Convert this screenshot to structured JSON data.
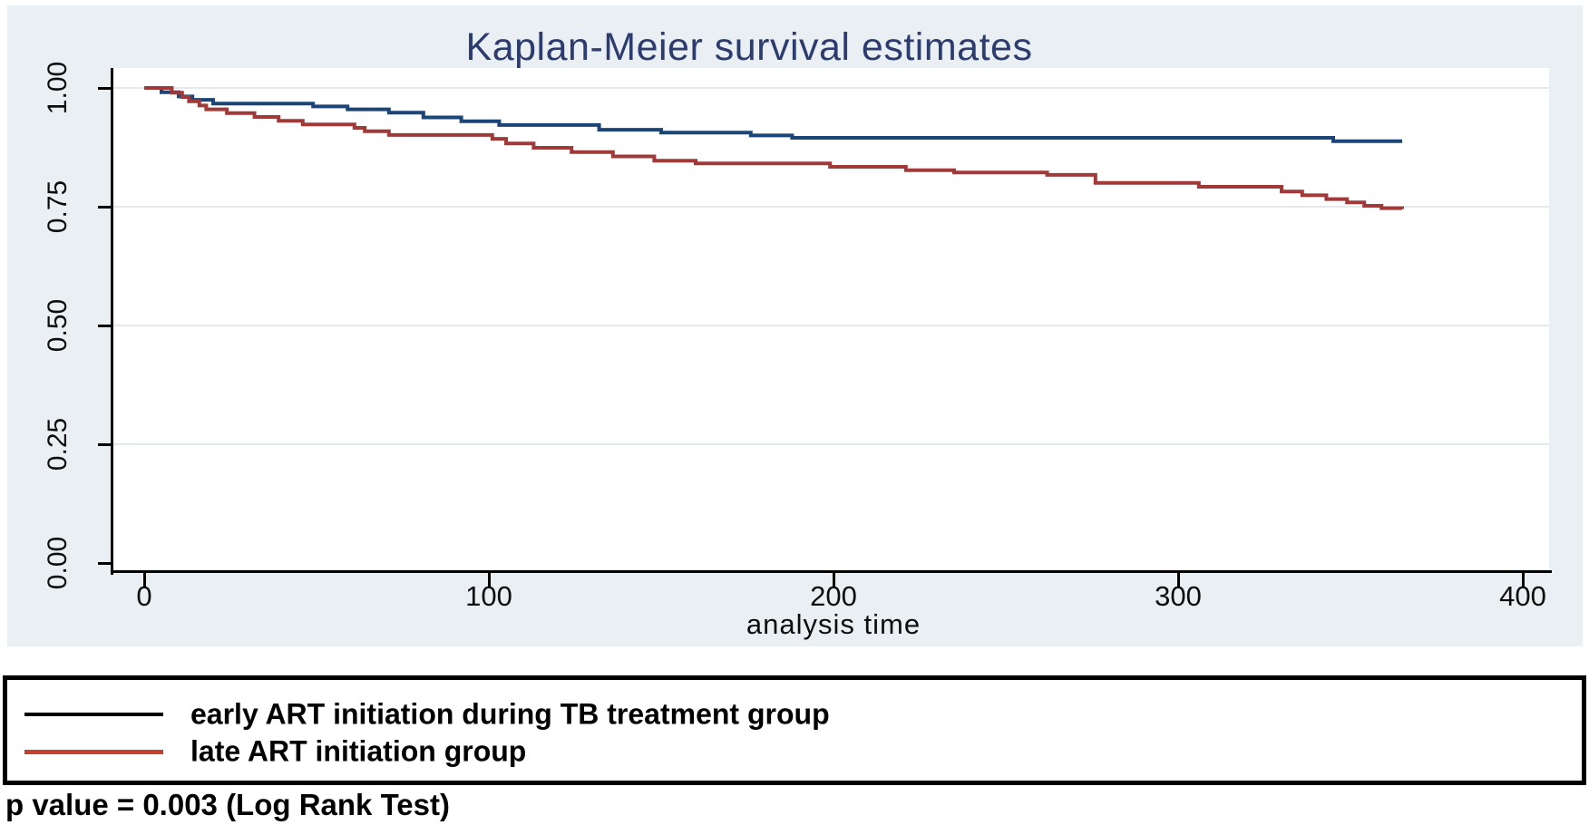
{
  "title": "Kaplan-Meier survival estimates",
  "chart_data": {
    "type": "line",
    "subtype": "kaplan-meier-survival-step",
    "title": "Kaplan-Meier survival estimates",
    "xlabel": "analysis time",
    "ylabel": "",
    "xlim": [
      0,
      400
    ],
    "ylim": [
      0.0,
      1.0
    ],
    "grid": "horizontal-faint",
    "legend_position": "bottom-framed-box",
    "x_ticks": [
      {
        "label": "0",
        "value": 0
      },
      {
        "label": "100",
        "value": 100
      },
      {
        "label": "200",
        "value": 200
      },
      {
        "label": "300",
        "value": 300
      },
      {
        "label": "400",
        "value": 400
      }
    ],
    "y_ticks": [
      {
        "label": "1.00",
        "value": 1.0
      },
      {
        "label": "0.75",
        "value": 0.75
      },
      {
        "label": "0.50",
        "value": 0.5
      },
      {
        "label": "0.25",
        "value": 0.25
      },
      {
        "label": "0.00",
        "value": 0.0
      }
    ],
    "series": [
      {
        "name": "early ART initiation during TB treatment group",
        "color": "#1c4577",
        "legend_swatch_color": "#000000",
        "end_time": 365,
        "steps": [
          [
            0,
            1.0
          ],
          [
            5,
            0.991
          ],
          [
            10,
            0.982
          ],
          [
            14,
            0.975
          ],
          [
            20,
            0.967
          ],
          [
            49,
            0.961
          ],
          [
            59,
            0.955
          ],
          [
            71,
            0.948
          ],
          [
            81,
            0.938
          ],
          [
            92,
            0.93
          ],
          [
            103,
            0.922
          ],
          [
            132,
            0.912
          ],
          [
            150,
            0.906
          ],
          [
            176,
            0.9
          ],
          [
            188,
            0.895
          ],
          [
            345,
            0.888
          ],
          [
            365,
            0.888
          ]
        ]
      },
      {
        "name": "late ART initiation group",
        "color": "#a03a38",
        "legend_swatch_color": "#c4402f",
        "end_time": 365,
        "steps": [
          [
            0,
            1.0
          ],
          [
            8,
            0.99
          ],
          [
            11,
            0.981
          ],
          [
            13,
            0.972
          ],
          [
            16,
            0.963
          ],
          [
            18,
            0.955
          ],
          [
            24,
            0.947
          ],
          [
            32,
            0.939
          ],
          [
            39,
            0.931
          ],
          [
            46,
            0.923
          ],
          [
            61,
            0.916
          ],
          [
            64,
            0.909
          ],
          [
            71,
            0.901
          ],
          [
            101,
            0.893
          ],
          [
            105,
            0.883
          ],
          [
            113,
            0.874
          ],
          [
            124,
            0.865
          ],
          [
            136,
            0.856
          ],
          [
            148,
            0.847
          ],
          [
            160,
            0.841
          ],
          [
            199,
            0.834
          ],
          [
            221,
            0.827
          ],
          [
            235,
            0.822
          ],
          [
            262,
            0.817
          ],
          [
            276,
            0.8
          ],
          [
            306,
            0.792
          ],
          [
            330,
            0.782
          ],
          [
            336,
            0.774
          ],
          [
            343,
            0.766
          ],
          [
            349,
            0.759
          ],
          [
            354,
            0.752
          ],
          [
            359,
            0.747
          ],
          [
            365,
            0.745
          ]
        ]
      }
    ],
    "annotation": "p value = 0.003 (Log Rank Test)"
  },
  "legend": {
    "items": [
      {
        "label": "early ART initiation during TB treatment group",
        "swatch_color": "#000000"
      },
      {
        "label": "late ART initiation group",
        "swatch_color": "#c4402f"
      }
    ]
  },
  "footer": {
    "p_value_text": "p value = 0.003 (Log Rank Test)"
  },
  "colors": {
    "outer_background": "#e9eff3",
    "plot_background": "#ffffff",
    "gridline": "#e3eaef",
    "axis": "#000000",
    "title_text": "#2d3c6e",
    "tick_text": "#0d0d0d",
    "series_early": "#1c4577",
    "series_late": "#a03a38",
    "legend_late_swatch": "#c4402f"
  }
}
